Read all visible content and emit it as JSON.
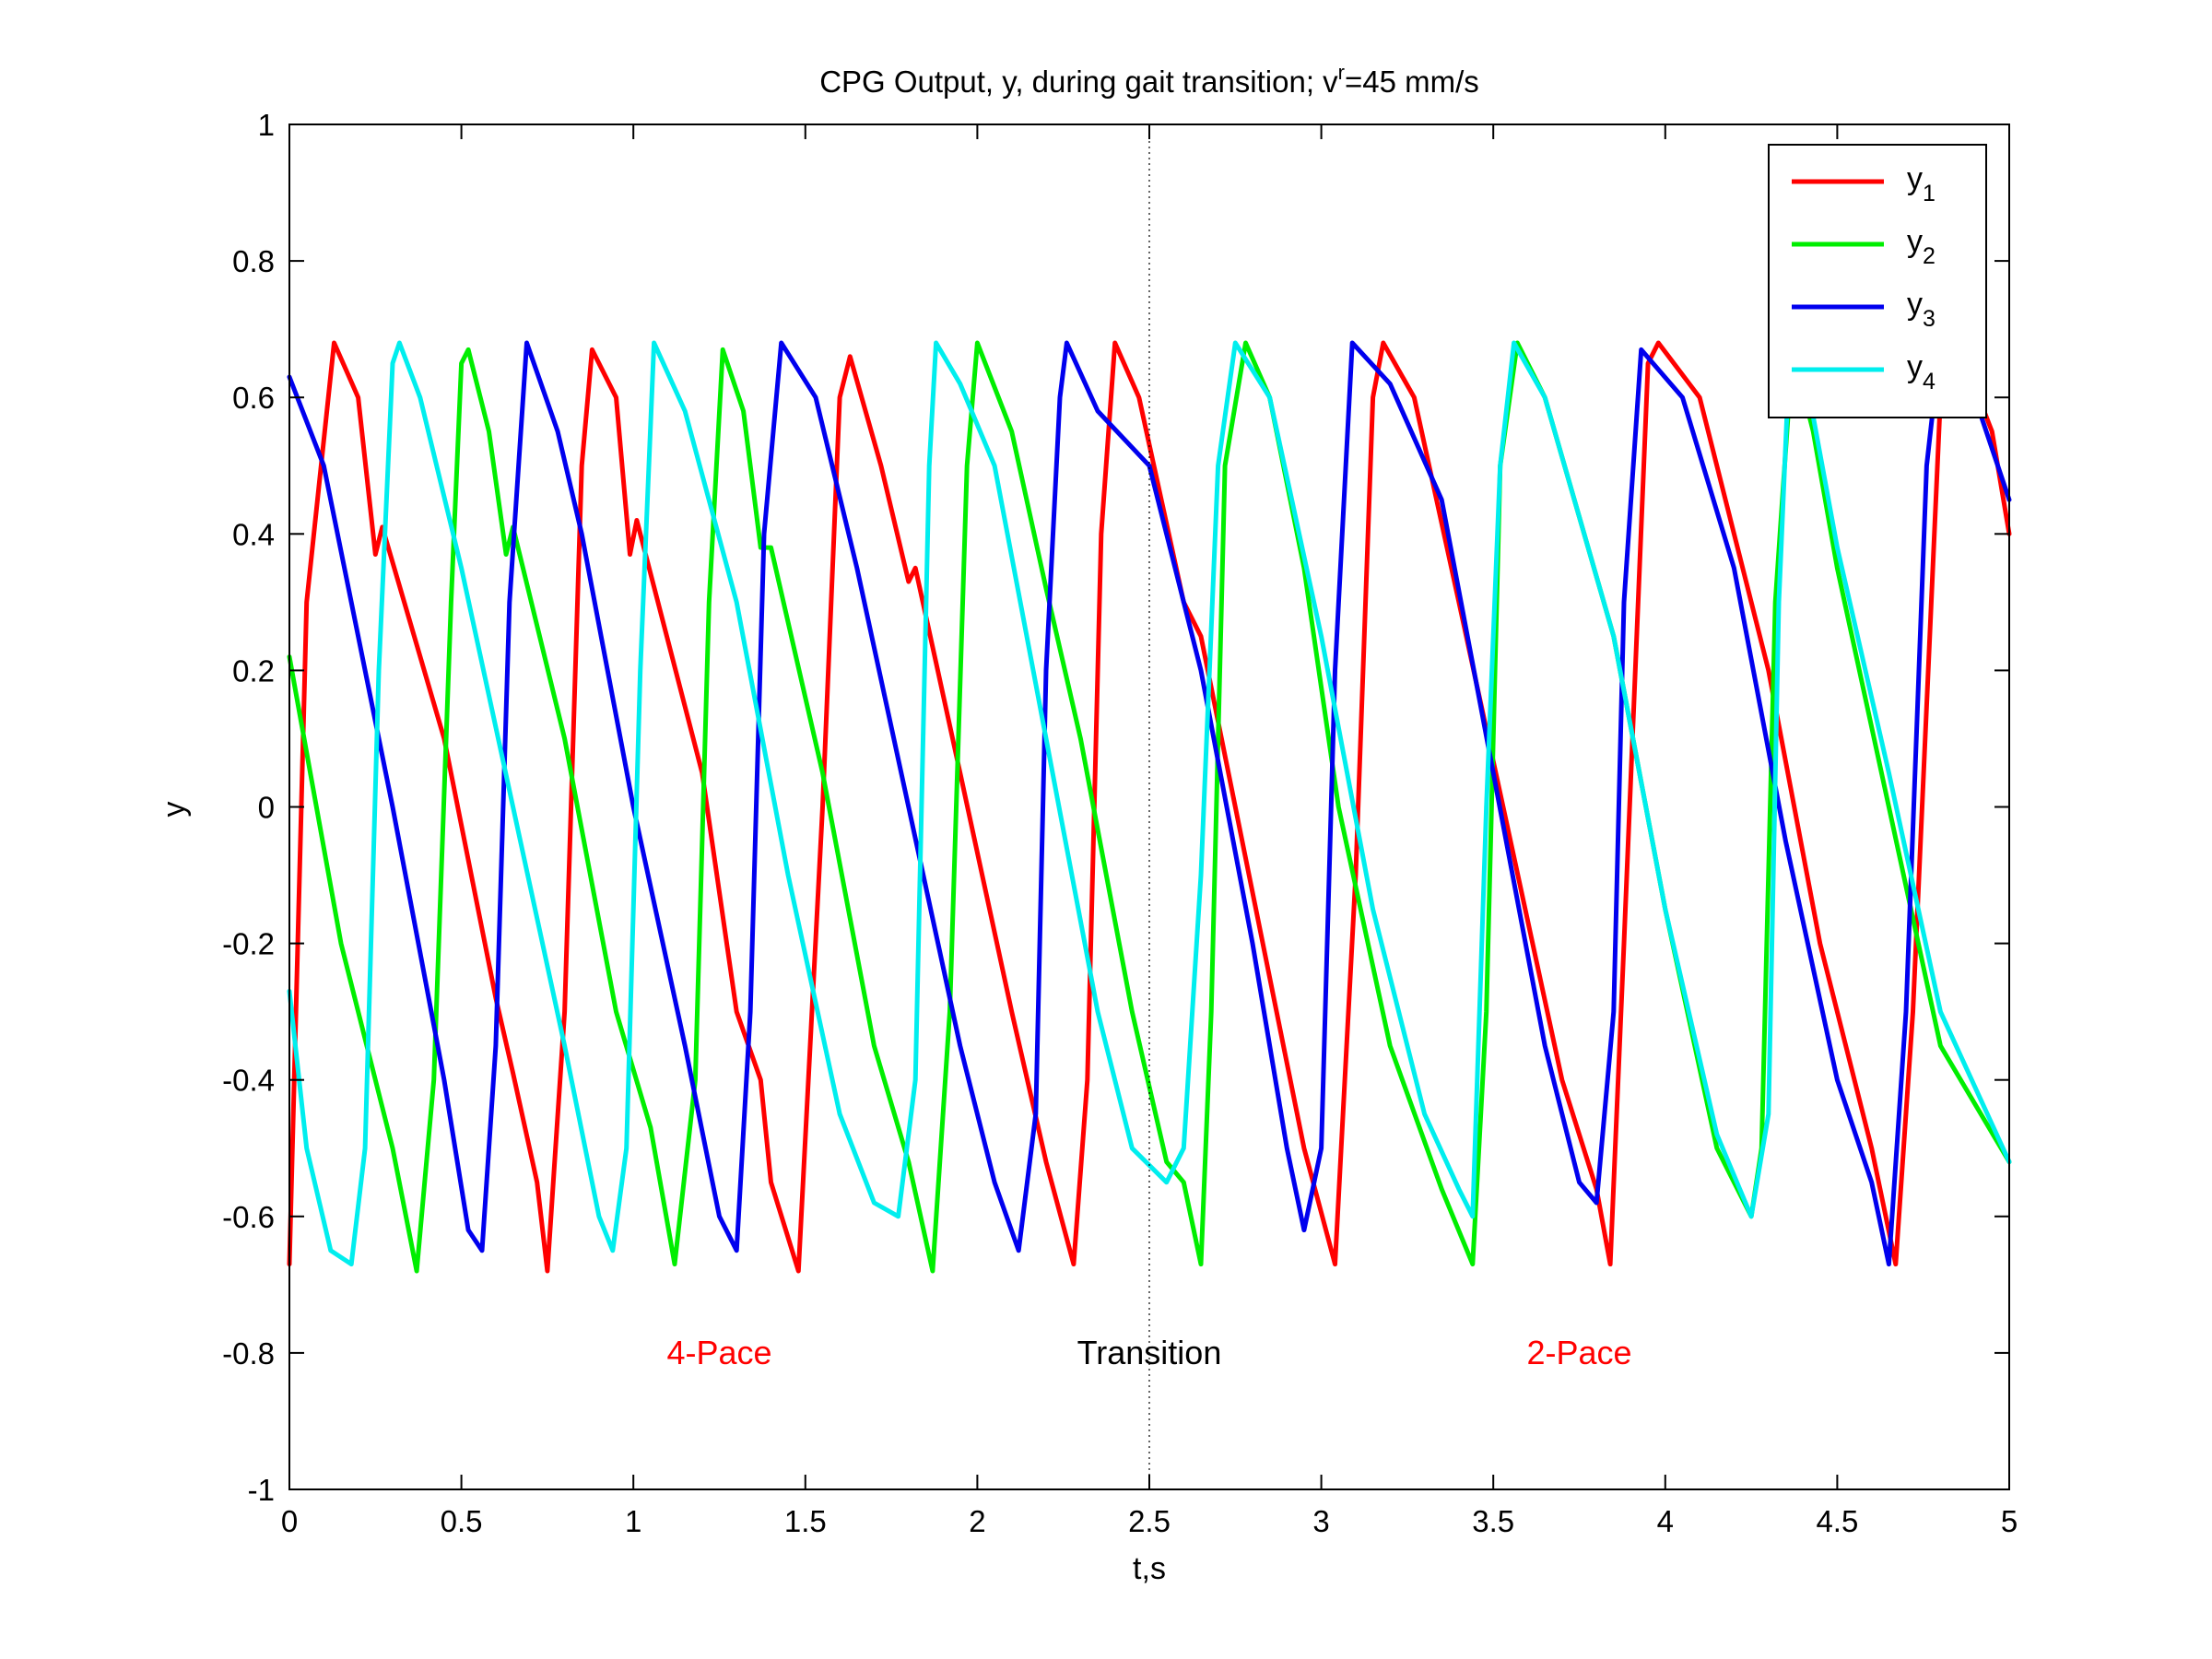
{
  "chart_data": {
    "type": "line",
    "title_main": "CPG Output, y, during gait transition; v",
    "title_sup": "r",
    "title_tail": "=45 mm/s",
    "xlabel": "t,s",
    "ylabel": "y",
    "xlim": [
      0,
      5
    ],
    "ylim": [
      -1,
      1
    ],
    "xticks": [
      0,
      0.5,
      1,
      1.5,
      2,
      2.5,
      3,
      3.5,
      4,
      4.5,
      5
    ],
    "xtick_labels": [
      "0",
      "0.5",
      "1",
      "1.5",
      "2",
      "2.5",
      "3",
      "3.5",
      "4",
      "4.5",
      "5"
    ],
    "yticks": [
      -1,
      -0.8,
      -0.6,
      -0.4,
      -0.2,
      0,
      0.2,
      0.4,
      0.6,
      0.8,
      1
    ],
    "ytick_labels": [
      "-1",
      "-0.8",
      "-0.6",
      "-0.4",
      "-0.2",
      "0",
      "0.2",
      "0.4",
      "0.6",
      "0.8",
      "1"
    ],
    "grid": false,
    "legend_position": "top-right",
    "vline": {
      "x": 2.5,
      "style": "dotted"
    },
    "annotations": [
      {
        "text": "4-Pace",
        "x": 1.25,
        "y": -0.8,
        "color": "#ff0000"
      },
      {
        "text": "Transition",
        "x": 2.5,
        "y": -0.8,
        "color": "#000000"
      },
      {
        "text": "2-Pace",
        "x": 3.75,
        "y": -0.8,
        "color": "#ff0000"
      }
    ],
    "series": [
      {
        "name": "y",
        "sub": "1",
        "color": "#ff0000",
        "points": [
          [
            0,
            -0.67
          ],
          [
            0.05,
            0.3
          ],
          [
            0.13,
            0.68
          ],
          [
            0.2,
            0.6
          ],
          [
            0.25,
            0.37
          ],
          [
            0.27,
            0.41
          ],
          [
            0.45,
            0.1
          ],
          [
            0.6,
            -0.28
          ],
          [
            0.65,
            -0.39
          ],
          [
            0.72,
            -0.55
          ],
          [
            0.75,
            -0.68
          ],
          [
            0.8,
            -0.3
          ],
          [
            0.85,
            0.5
          ],
          [
            0.88,
            0.67
          ],
          [
            0.95,
            0.6
          ],
          [
            0.99,
            0.37
          ],
          [
            1.01,
            0.42
          ],
          [
            1.2,
            0.05
          ],
          [
            1.3,
            -0.3
          ],
          [
            1.37,
            -0.4
          ],
          [
            1.4,
            -0.55
          ],
          [
            1.48,
            -0.68
          ],
          [
            1.55,
            0.0
          ],
          [
            1.6,
            0.6
          ],
          [
            1.63,
            0.66
          ],
          [
            1.72,
            0.5
          ],
          [
            1.8,
            0.33
          ],
          [
            1.82,
            0.35
          ],
          [
            1.95,
            0.05
          ],
          [
            2.1,
            -0.3
          ],
          [
            2.2,
            -0.52
          ],
          [
            2.28,
            -0.67
          ],
          [
            2.32,
            -0.4
          ],
          [
            2.36,
            0.4
          ],
          [
            2.4,
            0.68
          ],
          [
            2.47,
            0.6
          ],
          [
            2.6,
            0.3
          ],
          [
            2.65,
            0.25
          ],
          [
            2.75,
            0.0
          ],
          [
            2.85,
            -0.25
          ],
          [
            2.95,
            -0.5
          ],
          [
            3.04,
            -0.67
          ],
          [
            3.1,
            -0.1
          ],
          [
            3.15,
            0.6
          ],
          [
            3.18,
            0.68
          ],
          [
            3.27,
            0.6
          ],
          [
            3.4,
            0.3
          ],
          [
            3.55,
            -0.05
          ],
          [
            3.7,
            -0.4
          ],
          [
            3.8,
            -0.56
          ],
          [
            3.84,
            -0.67
          ],
          [
            3.88,
            -0.2
          ],
          [
            3.95,
            0.65
          ],
          [
            3.98,
            0.68
          ],
          [
            4.1,
            0.6
          ],
          [
            4.3,
            0.2
          ],
          [
            4.45,
            -0.2
          ],
          [
            4.6,
            -0.5
          ],
          [
            4.67,
            -0.67
          ],
          [
            4.72,
            -0.3
          ],
          [
            4.8,
            0.6
          ],
          [
            4.85,
            0.68
          ],
          [
            4.95,
            0.55
          ],
          [
            5,
            0.4
          ]
        ]
      },
      {
        "name": "y",
        "sub": "2",
        "color": "#00ee00",
        "points": [
          [
            0,
            0.22
          ],
          [
            0.15,
            -0.2
          ],
          [
            0.25,
            -0.4
          ],
          [
            0.3,
            -0.5
          ],
          [
            0.37,
            -0.68
          ],
          [
            0.42,
            -0.4
          ],
          [
            0.47,
            0.3
          ],
          [
            0.5,
            0.65
          ],
          [
            0.52,
            0.67
          ],
          [
            0.58,
            0.55
          ],
          [
            0.63,
            0.37
          ],
          [
            0.65,
            0.41
          ],
          [
            0.8,
            0.1
          ],
          [
            0.95,
            -0.3
          ],
          [
            1.05,
            -0.47
          ],
          [
            1.12,
            -0.67
          ],
          [
            1.18,
            -0.4
          ],
          [
            1.22,
            0.3
          ],
          [
            1.26,
            0.67
          ],
          [
            1.32,
            0.58
          ],
          [
            1.37,
            0.38
          ],
          [
            1.4,
            0.38
          ],
          [
            1.55,
            0.05
          ],
          [
            1.7,
            -0.35
          ],
          [
            1.8,
            -0.52
          ],
          [
            1.87,
            -0.68
          ],
          [
            1.92,
            -0.3
          ],
          [
            1.97,
            0.5
          ],
          [
            2.0,
            0.68
          ],
          [
            2.1,
            0.55
          ],
          [
            2.2,
            0.32
          ],
          [
            2.3,
            0.1
          ],
          [
            2.45,
            -0.3
          ],
          [
            2.55,
            -0.52
          ],
          [
            2.6,
            -0.55
          ],
          [
            2.65,
            -0.67
          ],
          [
            2.68,
            -0.3
          ],
          [
            2.72,
            0.5
          ],
          [
            2.78,
            0.68
          ],
          [
            2.85,
            0.6
          ],
          [
            2.95,
            0.35
          ],
          [
            3.05,
            0.0
          ],
          [
            3.2,
            -0.35
          ],
          [
            3.35,
            -0.56
          ],
          [
            3.44,
            -0.67
          ],
          [
            3.48,
            -0.3
          ],
          [
            3.52,
            0.5
          ],
          [
            3.57,
            0.68
          ],
          [
            3.65,
            0.6
          ],
          [
            3.85,
            0.25
          ],
          [
            4.0,
            -0.15
          ],
          [
            4.15,
            -0.5
          ],
          [
            4.25,
            -0.6
          ],
          [
            4.28,
            -0.5
          ],
          [
            4.32,
            0.3
          ],
          [
            4.37,
            0.67
          ],
          [
            4.43,
            0.55
          ],
          [
            4.5,
            0.35
          ],
          [
            4.65,
            0.0
          ],
          [
            4.8,
            -0.35
          ],
          [
            5,
            -0.52
          ]
        ]
      },
      {
        "name": "y",
        "sub": "3",
        "color": "#0000ee",
        "points": [
          [
            0,
            0.63
          ],
          [
            0.1,
            0.5
          ],
          [
            0.3,
            0.0
          ],
          [
            0.45,
            -0.4
          ],
          [
            0.52,
            -0.62
          ],
          [
            0.56,
            -0.65
          ],
          [
            0.6,
            -0.35
          ],
          [
            0.64,
            0.3
          ],
          [
            0.69,
            0.68
          ],
          [
            0.78,
            0.55
          ],
          [
            0.85,
            0.4
          ],
          [
            1.0,
            0.0
          ],
          [
            1.15,
            -0.35
          ],
          [
            1.25,
            -0.6
          ],
          [
            1.3,
            -0.65
          ],
          [
            1.34,
            -0.3
          ],
          [
            1.38,
            0.4
          ],
          [
            1.43,
            0.68
          ],
          [
            1.53,
            0.6
          ],
          [
            1.65,
            0.35
          ],
          [
            1.8,
            0.0
          ],
          [
            1.95,
            -0.35
          ],
          [
            2.05,
            -0.55
          ],
          [
            2.12,
            -0.65
          ],
          [
            2.17,
            -0.45
          ],
          [
            2.2,
            0.2
          ],
          [
            2.24,
            0.6
          ],
          [
            2.26,
            0.68
          ],
          [
            2.35,
            0.58
          ],
          [
            2.5,
            0.5
          ],
          [
            2.65,
            0.2
          ],
          [
            2.8,
            -0.2
          ],
          [
            2.9,
            -0.5
          ],
          [
            2.95,
            -0.62
          ],
          [
            3.0,
            -0.5
          ],
          [
            3.04,
            0.2
          ],
          [
            3.09,
            0.68
          ],
          [
            3.2,
            0.62
          ],
          [
            3.35,
            0.45
          ],
          [
            3.5,
            0.05
          ],
          [
            3.65,
            -0.35
          ],
          [
            3.75,
            -0.55
          ],
          [
            3.8,
            -0.58
          ],
          [
            3.85,
            -0.3
          ],
          [
            3.88,
            0.3
          ],
          [
            3.93,
            0.67
          ],
          [
            4.05,
            0.6
          ],
          [
            4.2,
            0.35
          ],
          [
            4.35,
            -0.05
          ],
          [
            4.5,
            -0.4
          ],
          [
            4.6,
            -0.55
          ],
          [
            4.65,
            -0.67
          ],
          [
            4.7,
            -0.3
          ],
          [
            4.76,
            0.5
          ],
          [
            4.8,
            0.68
          ],
          [
            4.9,
            0.6
          ],
          [
            5,
            0.45
          ]
        ]
      },
      {
        "name": "y",
        "sub": "4",
        "color": "#00eeee",
        "points": [
          [
            0,
            -0.27
          ],
          [
            0.05,
            -0.5
          ],
          [
            0.12,
            -0.65
          ],
          [
            0.18,
            -0.67
          ],
          [
            0.22,
            -0.5
          ],
          [
            0.26,
            0.2
          ],
          [
            0.3,
            0.65
          ],
          [
            0.32,
            0.68
          ],
          [
            0.38,
            0.6
          ],
          [
            0.5,
            0.35
          ],
          [
            0.65,
            0.0
          ],
          [
            0.8,
            -0.35
          ],
          [
            0.9,
            -0.6
          ],
          [
            0.94,
            -0.65
          ],
          [
            0.98,
            -0.5
          ],
          [
            1.02,
            0.2
          ],
          [
            1.06,
            0.68
          ],
          [
            1.15,
            0.58
          ],
          [
            1.3,
            0.3
          ],
          [
            1.45,
            -0.1
          ],
          [
            1.6,
            -0.45
          ],
          [
            1.7,
            -0.58
          ],
          [
            1.77,
            -0.6
          ],
          [
            1.82,
            -0.4
          ],
          [
            1.86,
            0.5
          ],
          [
            1.88,
            0.68
          ],
          [
            1.95,
            0.62
          ],
          [
            2.05,
            0.5
          ],
          [
            2.2,
            0.1
          ],
          [
            2.35,
            -0.3
          ],
          [
            2.45,
            -0.5
          ],
          [
            2.55,
            -0.55
          ],
          [
            2.6,
            -0.5
          ],
          [
            2.65,
            -0.1
          ],
          [
            2.7,
            0.5
          ],
          [
            2.75,
            0.68
          ],
          [
            2.85,
            0.6
          ],
          [
            3.0,
            0.25
          ],
          [
            3.15,
            -0.15
          ],
          [
            3.3,
            -0.45
          ],
          [
            3.4,
            -0.56
          ],
          [
            3.44,
            -0.6
          ],
          [
            3.48,
            0.0
          ],
          [
            3.52,
            0.5
          ],
          [
            3.56,
            0.68
          ],
          [
            3.65,
            0.6
          ],
          [
            3.85,
            0.25
          ],
          [
            4.0,
            -0.15
          ],
          [
            4.15,
            -0.48
          ],
          [
            4.25,
            -0.6
          ],
          [
            4.3,
            -0.45
          ],
          [
            4.33,
            0.3
          ],
          [
            4.36,
            0.65
          ],
          [
            4.42,
            0.6
          ],
          [
            4.5,
            0.38
          ],
          [
            4.65,
            0.05
          ],
          [
            4.8,
            -0.3
          ],
          [
            5,
            -0.52
          ]
        ]
      }
    ]
  }
}
